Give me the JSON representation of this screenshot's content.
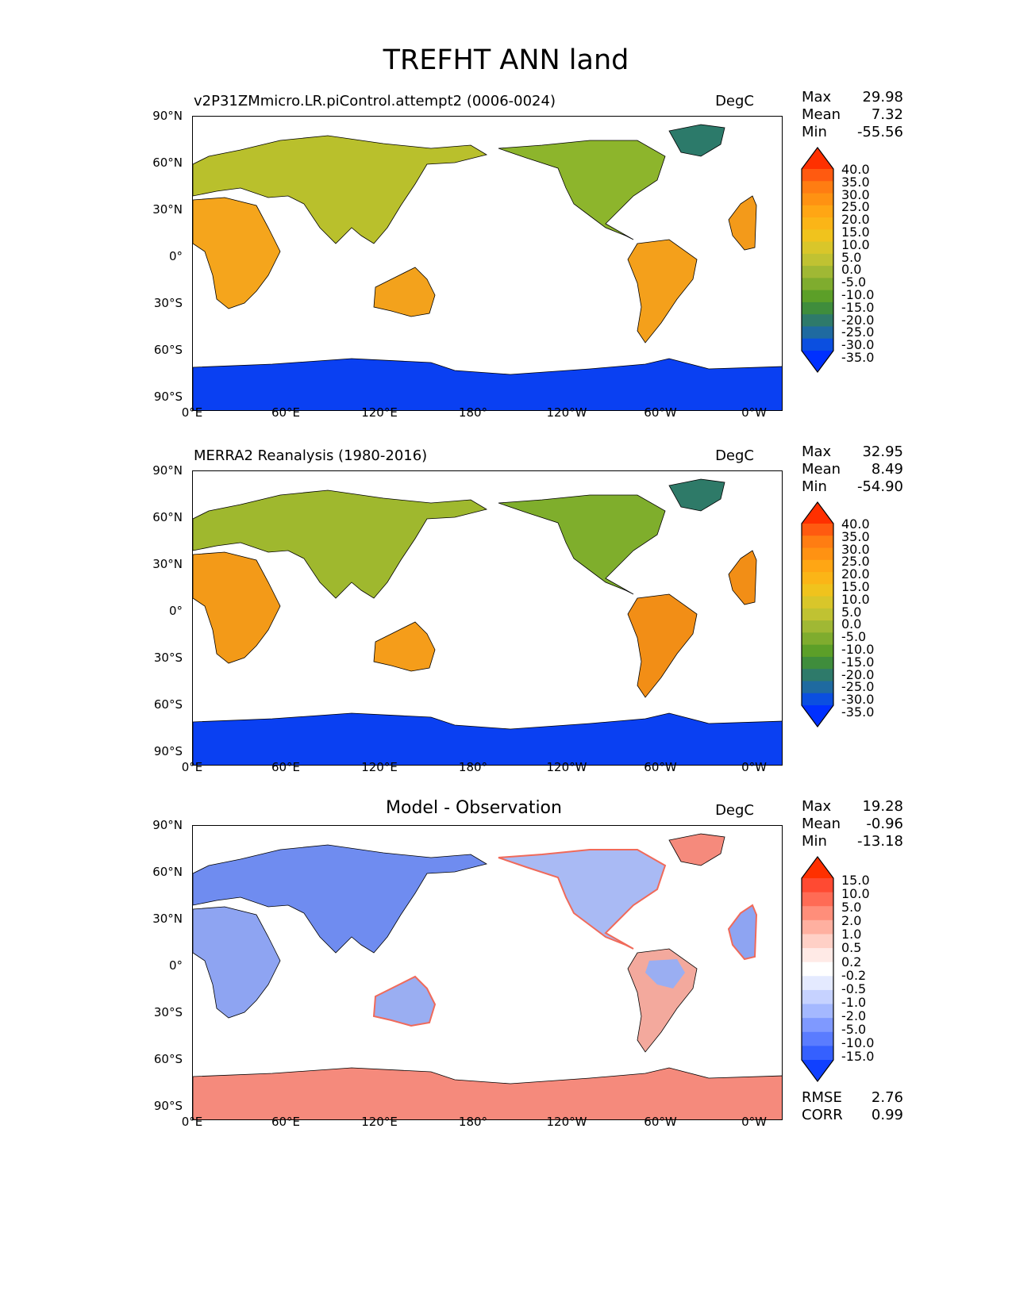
{
  "figure": {
    "title": "TREFHT ANN land"
  },
  "axes": {
    "lat_labels": [
      "90°N",
      "60°N",
      "30°N",
      "0°",
      "30°S",
      "60°S",
      "90°S"
    ],
    "lon_labels": [
      "0°E",
      "60°E",
      "120°E",
      "180°",
      "120°W",
      "60°W",
      "0°W"
    ]
  },
  "panels": [
    {
      "title": "v2P31ZMmicro.LR.piControl.attempt2 (0006-0024)",
      "units": "DegC",
      "stats": [
        {
          "label": "Max",
          "value": "29.98"
        },
        {
          "label": "Mean",
          "value": "7.32"
        },
        {
          "label": "Min",
          "value": "-55.56"
        }
      ],
      "colorbar": {
        "labels": [
          "40.0",
          "35.0",
          "30.0",
          "25.0",
          "20.0",
          "15.0",
          "10.0",
          "5.0",
          "0.0",
          "-5.0",
          "-10.0",
          "-15.0",
          "-20.0",
          "-25.0",
          "-30.0",
          "-35.0"
        ],
        "colors": [
          "#ff3000",
          "#ff5a10",
          "#ff7d12",
          "#ff9212",
          "#ffa614",
          "#fbb517",
          "#f0c31d",
          "#d9c62a",
          "#c0c232",
          "#a0b834",
          "#7fac2e",
          "#5c9f28",
          "#3f8d3c",
          "#2e7a6a",
          "#1f6aa0",
          "#0b4fe0",
          "#0030ff"
        ]
      }
    },
    {
      "title": "MERRA2 Reanalysis (1980-2016)",
      "units": "DegC",
      "stats": [
        {
          "label": "Max",
          "value": "32.95"
        },
        {
          "label": "Mean",
          "value": "8.49"
        },
        {
          "label": "Min",
          "value": "-54.90"
        }
      ],
      "colorbar": {
        "labels": [
          "40.0",
          "35.0",
          "30.0",
          "25.0",
          "20.0",
          "15.0",
          "10.0",
          "5.0",
          "0.0",
          "-5.0",
          "-10.0",
          "-15.0",
          "-20.0",
          "-25.0",
          "-30.0",
          "-35.0"
        ],
        "colors": [
          "#ff3000",
          "#ff5a10",
          "#ff7d12",
          "#ff9212",
          "#ffa614",
          "#fbb517",
          "#f0c31d",
          "#d9c62a",
          "#c0c232",
          "#a0b834",
          "#7fac2e",
          "#5c9f28",
          "#3f8d3c",
          "#2e7a6a",
          "#1f6aa0",
          "#0b4fe0",
          "#0030ff"
        ]
      }
    },
    {
      "title": "Model - Observation",
      "units": "DegC",
      "stats": [
        {
          "label": "Max",
          "value": "19.28"
        },
        {
          "label": "Mean",
          "value": "-0.96"
        },
        {
          "label": "Min",
          "value": "-13.18"
        }
      ],
      "extra_stats": [
        {
          "label": "RMSE",
          "value": "2.76"
        },
        {
          "label": "CORR",
          "value": "0.99"
        }
      ],
      "colorbar": {
        "labels": [
          "15.0",
          "10.0",
          "5.0",
          "2.0",
          "1.0",
          "0.5",
          "0.2",
          "-0.2",
          "-0.5",
          "-1.0",
          "-2.0",
          "-5.0",
          "-10.0",
          "-15.0"
        ],
        "colors": [
          "#ff3000",
          "#ff4a32",
          "#ff6b55",
          "#ff8e7a",
          "#ffb0a0",
          "#ffd0c6",
          "#ffeae6",
          "#ffffff",
          "#e4eaff",
          "#c6d2ff",
          "#a4b8ff",
          "#7f99ff",
          "#5a7cff",
          "#3560ff",
          "#1040ff"
        ]
      }
    }
  ],
  "colors": {
    "model_land": "#f2a21d",
    "model_highlat": "#6fa82e",
    "obs_land": "#f39a18",
    "ice": "#0a40f2",
    "diff_negative": "#6f8cf0",
    "diff_positive": "#f58a7c"
  }
}
